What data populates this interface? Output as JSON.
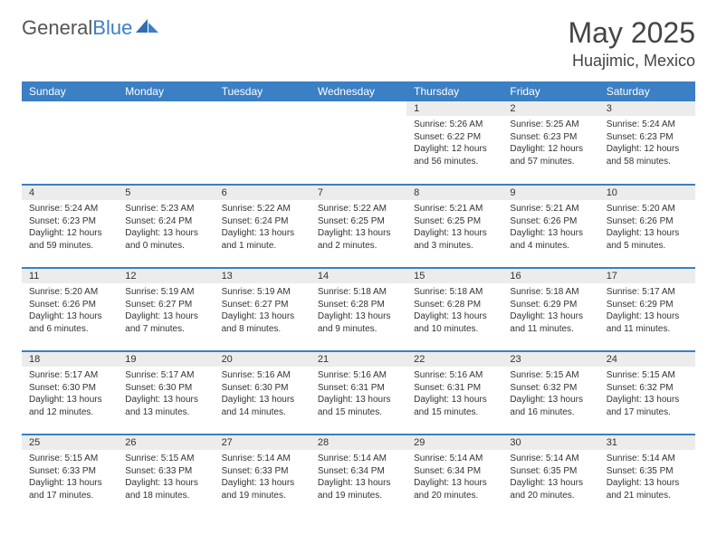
{
  "logo": {
    "text1": "General",
    "text2": "Blue"
  },
  "title": "May 2025",
  "location": "Huajimic, Mexico",
  "colors": {
    "header_bg": "#3b7fc4",
    "header_text": "#ffffff",
    "daynum_bg": "#ececec",
    "border": "#3b7fc4",
    "body_text": "#333333"
  },
  "weekdays": [
    "Sunday",
    "Monday",
    "Tuesday",
    "Wednesday",
    "Thursday",
    "Friday",
    "Saturday"
  ],
  "weeks": [
    [
      {
        "day": "",
        "sunrise": "",
        "sunset": "",
        "daylight": ""
      },
      {
        "day": "",
        "sunrise": "",
        "sunset": "",
        "daylight": ""
      },
      {
        "day": "",
        "sunrise": "",
        "sunset": "",
        "daylight": ""
      },
      {
        "day": "",
        "sunrise": "",
        "sunset": "",
        "daylight": ""
      },
      {
        "day": "1",
        "sunrise": "Sunrise: 5:26 AM",
        "sunset": "Sunset: 6:22 PM",
        "daylight": "Daylight: 12 hours and 56 minutes."
      },
      {
        "day": "2",
        "sunrise": "Sunrise: 5:25 AM",
        "sunset": "Sunset: 6:23 PM",
        "daylight": "Daylight: 12 hours and 57 minutes."
      },
      {
        "day": "3",
        "sunrise": "Sunrise: 5:24 AM",
        "sunset": "Sunset: 6:23 PM",
        "daylight": "Daylight: 12 hours and 58 minutes."
      }
    ],
    [
      {
        "day": "4",
        "sunrise": "Sunrise: 5:24 AM",
        "sunset": "Sunset: 6:23 PM",
        "daylight": "Daylight: 12 hours and 59 minutes."
      },
      {
        "day": "5",
        "sunrise": "Sunrise: 5:23 AM",
        "sunset": "Sunset: 6:24 PM",
        "daylight": "Daylight: 13 hours and 0 minutes."
      },
      {
        "day": "6",
        "sunrise": "Sunrise: 5:22 AM",
        "sunset": "Sunset: 6:24 PM",
        "daylight": "Daylight: 13 hours and 1 minute."
      },
      {
        "day": "7",
        "sunrise": "Sunrise: 5:22 AM",
        "sunset": "Sunset: 6:25 PM",
        "daylight": "Daylight: 13 hours and 2 minutes."
      },
      {
        "day": "8",
        "sunrise": "Sunrise: 5:21 AM",
        "sunset": "Sunset: 6:25 PM",
        "daylight": "Daylight: 13 hours and 3 minutes."
      },
      {
        "day": "9",
        "sunrise": "Sunrise: 5:21 AM",
        "sunset": "Sunset: 6:26 PM",
        "daylight": "Daylight: 13 hours and 4 minutes."
      },
      {
        "day": "10",
        "sunrise": "Sunrise: 5:20 AM",
        "sunset": "Sunset: 6:26 PM",
        "daylight": "Daylight: 13 hours and 5 minutes."
      }
    ],
    [
      {
        "day": "11",
        "sunrise": "Sunrise: 5:20 AM",
        "sunset": "Sunset: 6:26 PM",
        "daylight": "Daylight: 13 hours and 6 minutes."
      },
      {
        "day": "12",
        "sunrise": "Sunrise: 5:19 AM",
        "sunset": "Sunset: 6:27 PM",
        "daylight": "Daylight: 13 hours and 7 minutes."
      },
      {
        "day": "13",
        "sunrise": "Sunrise: 5:19 AM",
        "sunset": "Sunset: 6:27 PM",
        "daylight": "Daylight: 13 hours and 8 minutes."
      },
      {
        "day": "14",
        "sunrise": "Sunrise: 5:18 AM",
        "sunset": "Sunset: 6:28 PM",
        "daylight": "Daylight: 13 hours and 9 minutes."
      },
      {
        "day": "15",
        "sunrise": "Sunrise: 5:18 AM",
        "sunset": "Sunset: 6:28 PM",
        "daylight": "Daylight: 13 hours and 10 minutes."
      },
      {
        "day": "16",
        "sunrise": "Sunrise: 5:18 AM",
        "sunset": "Sunset: 6:29 PM",
        "daylight": "Daylight: 13 hours and 11 minutes."
      },
      {
        "day": "17",
        "sunrise": "Sunrise: 5:17 AM",
        "sunset": "Sunset: 6:29 PM",
        "daylight": "Daylight: 13 hours and 11 minutes."
      }
    ],
    [
      {
        "day": "18",
        "sunrise": "Sunrise: 5:17 AM",
        "sunset": "Sunset: 6:30 PM",
        "daylight": "Daylight: 13 hours and 12 minutes."
      },
      {
        "day": "19",
        "sunrise": "Sunrise: 5:17 AM",
        "sunset": "Sunset: 6:30 PM",
        "daylight": "Daylight: 13 hours and 13 minutes."
      },
      {
        "day": "20",
        "sunrise": "Sunrise: 5:16 AM",
        "sunset": "Sunset: 6:30 PM",
        "daylight": "Daylight: 13 hours and 14 minutes."
      },
      {
        "day": "21",
        "sunrise": "Sunrise: 5:16 AM",
        "sunset": "Sunset: 6:31 PM",
        "daylight": "Daylight: 13 hours and 15 minutes."
      },
      {
        "day": "22",
        "sunrise": "Sunrise: 5:16 AM",
        "sunset": "Sunset: 6:31 PM",
        "daylight": "Daylight: 13 hours and 15 minutes."
      },
      {
        "day": "23",
        "sunrise": "Sunrise: 5:15 AM",
        "sunset": "Sunset: 6:32 PM",
        "daylight": "Daylight: 13 hours and 16 minutes."
      },
      {
        "day": "24",
        "sunrise": "Sunrise: 5:15 AM",
        "sunset": "Sunset: 6:32 PM",
        "daylight": "Daylight: 13 hours and 17 minutes."
      }
    ],
    [
      {
        "day": "25",
        "sunrise": "Sunrise: 5:15 AM",
        "sunset": "Sunset: 6:33 PM",
        "daylight": "Daylight: 13 hours and 17 minutes."
      },
      {
        "day": "26",
        "sunrise": "Sunrise: 5:15 AM",
        "sunset": "Sunset: 6:33 PM",
        "daylight": "Daylight: 13 hours and 18 minutes."
      },
      {
        "day": "27",
        "sunrise": "Sunrise: 5:14 AM",
        "sunset": "Sunset: 6:33 PM",
        "daylight": "Daylight: 13 hours and 19 minutes."
      },
      {
        "day": "28",
        "sunrise": "Sunrise: 5:14 AM",
        "sunset": "Sunset: 6:34 PM",
        "daylight": "Daylight: 13 hours and 19 minutes."
      },
      {
        "day": "29",
        "sunrise": "Sunrise: 5:14 AM",
        "sunset": "Sunset: 6:34 PM",
        "daylight": "Daylight: 13 hours and 20 minutes."
      },
      {
        "day": "30",
        "sunrise": "Sunrise: 5:14 AM",
        "sunset": "Sunset: 6:35 PM",
        "daylight": "Daylight: 13 hours and 20 minutes."
      },
      {
        "day": "31",
        "sunrise": "Sunrise: 5:14 AM",
        "sunset": "Sunset: 6:35 PM",
        "daylight": "Daylight: 13 hours and 21 minutes."
      }
    ]
  ]
}
